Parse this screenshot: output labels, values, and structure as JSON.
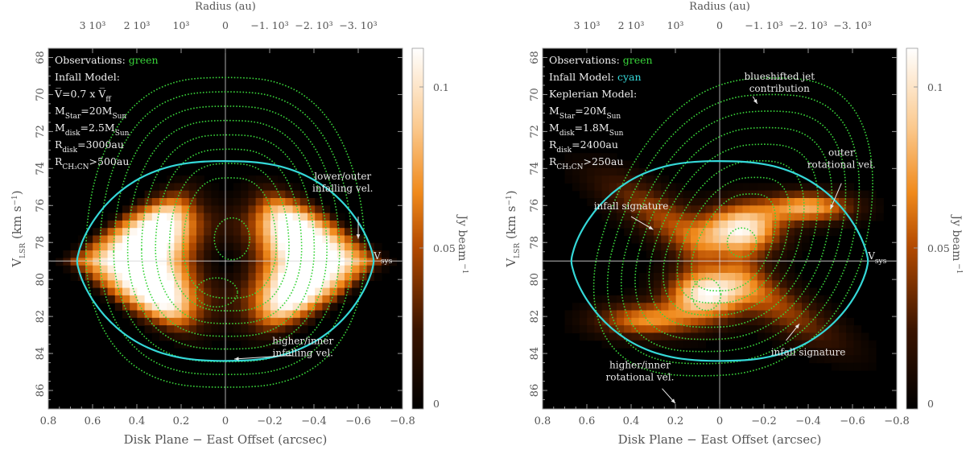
{
  "chart_data": [
    {
      "type": "heatmap",
      "panel": "left",
      "title": "",
      "xlabel": "Disk Plane − East Offset (arcsec)",
      "ylabel_main": "V",
      "ylabel_sub": "LSR",
      "ylabel_units": "(km s",
      "ylabel_exp": "−1",
      "ylabel_close": ")",
      "top_axis_label": "Radius (au)",
      "xlim": [
        0.8,
        -0.8
      ],
      "ylim": [
        87,
        67.5
      ],
      "xticks": [
        0.8,
        0.6,
        0.4,
        0.2,
        0,
        -0.2,
        -0.4,
        -0.6,
        -0.8
      ],
      "xtick_labels": [
        "0.8",
        "0.6",
        "0.4",
        "0.2",
        "0",
        "−0.2",
        "−0.4",
        "−0.6",
        "−0.8"
      ],
      "yticks": [
        68,
        70,
        72,
        74,
        76,
        78,
        80,
        82,
        84,
        86
      ],
      "ytick_labels": [
        "68",
        "70",
        "72",
        "74",
        "76",
        "78",
        "80",
        "82",
        "84",
        "86"
      ],
      "top_ticks": [
        0.6,
        0.4,
        0.2,
        0,
        -0.2,
        -0.4,
        -0.6
      ],
      "top_tick_labels": [
        "3 10³",
        "2 10³",
        "10³",
        "0",
        "−1. 10³",
        "−2. 10³",
        "−3. 10³"
      ],
      "vsys": 79,
      "vsys_label_main": "V",
      "vsys_label_sub": "sys",
      "colorbar": {
        "label_main": "Jy beam",
        "label_exp": "−1",
        "range": [
          0,
          0.112
        ],
        "ticks": [
          0,
          0.05,
          0.1
        ],
        "tick_labels": [
          "0",
          "0.05",
          "0.1"
        ]
      },
      "legend_lines": [
        {
          "parts": [
            {
              "t": "Observations: "
            },
            {
              "t": "green",
              "color": "#39d43a"
            }
          ]
        },
        {
          "parts": [
            {
              "t": "Infall Model:"
            }
          ]
        },
        {
          "parts": [
            {
              "t": "V̅=0.7 x V̅"
            },
            {
              "t": "ff",
              "sub": true
            }
          ]
        },
        {
          "parts": [
            {
              "t": "M"
            },
            {
              "t": "Star",
              "sub": true
            },
            {
              "t": "=20M"
            },
            {
              "t": "Sun",
              "sub": true
            }
          ]
        },
        {
          "parts": [
            {
              "t": "M"
            },
            {
              "t": "disk",
              "sub": true
            },
            {
              "t": "=2.5M"
            },
            {
              "t": "Sun",
              "sub": true
            }
          ]
        },
        {
          "parts": [
            {
              "t": "R"
            },
            {
              "t": "disk",
              "sub": true
            },
            {
              "t": "=3000au"
            }
          ]
        },
        {
          "parts": [
            {
              "t": "R"
            },
            {
              "t": "CH₃CN",
              "sub": true
            },
            {
              "t": ">500au"
            }
          ]
        }
      ],
      "annotations": [
        {
          "lines": [
            "lower/outer",
            "infalling vel."
          ],
          "text_at": [
            -0.53,
            74.6
          ],
          "arrow_from": [
            -0.6,
            76.6
          ],
          "arrow_to": [
            -0.6,
            77.8
          ]
        },
        {
          "lines": [
            "higher/inner",
            "infalling vel."
          ],
          "text_at": [
            -0.35,
            83.5
          ],
          "arrow_from": [
            -0.3,
            84.1
          ],
          "arrow_to": [
            -0.04,
            84.3
          ]
        }
      ],
      "model_infall": {
        "color": "#35d8d8",
        "peak_v_top": 73.6,
        "peak_v_bottom": 84.4,
        "half_width": 0.67,
        "vsys": 79
      },
      "observations": {
        "color": "#39d43a",
        "contour_levels": [
          0.1,
          0.2,
          0.3,
          0.4,
          0.5,
          0.6,
          0.7,
          0.8
        ],
        "description": "dotted green contours, double-lobed ring around systemic velocity"
      }
    },
    {
      "type": "heatmap",
      "panel": "right",
      "title": "",
      "xlabel": "Disk Plane − East Offset (arcsec)",
      "ylabel_main": "V",
      "ylabel_sub": "LSR",
      "ylabel_units": "(km s",
      "ylabel_exp": "−1",
      "ylabel_close": ")",
      "top_axis_label": "Radius (au)",
      "xlim": [
        0.8,
        -0.8
      ],
      "ylim": [
        87,
        67.5
      ],
      "xticks": [
        0.8,
        0.6,
        0.4,
        0.2,
        0,
        -0.2,
        -0.4,
        -0.6,
        -0.8
      ],
      "xtick_labels": [
        "0.8",
        "0.6",
        "0.4",
        "0.2",
        "0",
        "−0.2",
        "−0.4",
        "−0.6",
        "−0.8"
      ],
      "yticks": [
        68,
        70,
        72,
        74,
        76,
        78,
        80,
        82,
        84,
        86
      ],
      "ytick_labels": [
        "68",
        "70",
        "72",
        "74",
        "76",
        "78",
        "80",
        "82",
        "84",
        "86"
      ],
      "top_ticks": [
        0.6,
        0.4,
        0.2,
        0,
        -0.2,
        -0.4,
        -0.6
      ],
      "top_tick_labels": [
        "3 10³",
        "2 10³",
        "10³",
        "0",
        "−1. 10³",
        "−2. 10³",
        "−3. 10³"
      ],
      "vsys": 79,
      "vsys_label_main": "V",
      "vsys_label_sub": "sys",
      "colorbar": {
        "label_main": "Jy beam",
        "label_exp": "−1",
        "range": [
          0,
          0.112
        ],
        "ticks": [
          0,
          0.05,
          0.1
        ],
        "tick_labels": [
          "0",
          "0.05",
          "0.1"
        ]
      },
      "legend_lines": [
        {
          "parts": [
            {
              "t": "Observations: "
            },
            {
              "t": "green",
              "color": "#39d43a"
            }
          ]
        },
        {
          "parts": [
            {
              "t": "Infall Model: "
            },
            {
              "t": "cyan",
              "color": "#35d8d8"
            }
          ]
        },
        {
          "parts": [
            {
              "t": "Keplerian Model:"
            }
          ]
        },
        {
          "parts": [
            {
              "t": "M"
            },
            {
              "t": "Star",
              "sub": true
            },
            {
              "t": "=20M"
            },
            {
              "t": "Sun",
              "sub": true
            }
          ]
        },
        {
          "parts": [
            {
              "t": "M"
            },
            {
              "t": "disk",
              "sub": true
            },
            {
              "t": "=1.8M"
            },
            {
              "t": "Sun",
              "sub": true
            }
          ]
        },
        {
          "parts": [
            {
              "t": "R"
            },
            {
              "t": "disk",
              "sub": true
            },
            {
              "t": "=2400au"
            }
          ]
        },
        {
          "parts": [
            {
              "t": "R"
            },
            {
              "t": "CH₃CN",
              "sub": true
            },
            {
              "t": ">250au"
            }
          ]
        }
      ],
      "annotations": [
        {
          "lines": [
            "blueshifted jet",
            "contribution"
          ],
          "text_at": [
            -0.27,
            69.2
          ],
          "arrow_from": [
            -0.15,
            70.1
          ],
          "arrow_to": [
            -0.17,
            70.5
          ]
        },
        {
          "lines": [
            "outer",
            "rotational vel."
          ],
          "text_at": [
            -0.55,
            73.3
          ],
          "arrow_from": [
            -0.55,
            74.8
          ],
          "arrow_to": [
            -0.5,
            76.2
          ]
        },
        {
          "lines": [
            "infall signature"
          ],
          "text_at": [
            0.4,
            76.2
          ],
          "arrow_from": [
            0.4,
            76.6
          ],
          "arrow_to": [
            0.3,
            77.3
          ]
        },
        {
          "lines": [
            "infall signature"
          ],
          "text_at": [
            -0.4,
            84.1
          ],
          "arrow_from": [
            -0.3,
            83.3
          ],
          "arrow_to": [
            -0.36,
            82.4
          ]
        },
        {
          "lines": [
            "higher/inner",
            "rotational vel."
          ],
          "text_at": [
            0.36,
            84.8
          ],
          "arrow_from": [
            0.26,
            85.9
          ],
          "arrow_to": [
            0.2,
            86.7
          ]
        }
      ],
      "model_infall": {
        "color": "#35d8d8",
        "peak_v_top": 73.6,
        "peak_v_bottom": 84.4,
        "half_width": 0.67,
        "vsys": 79
      },
      "observations": {
        "color": "#39d43a",
        "contour_levels": [
          0.1,
          0.2,
          0.3,
          0.4,
          0.5,
          0.6,
          0.7,
          0.8
        ],
        "description": "dotted green contours, tilted butterfly pattern"
      }
    }
  ]
}
